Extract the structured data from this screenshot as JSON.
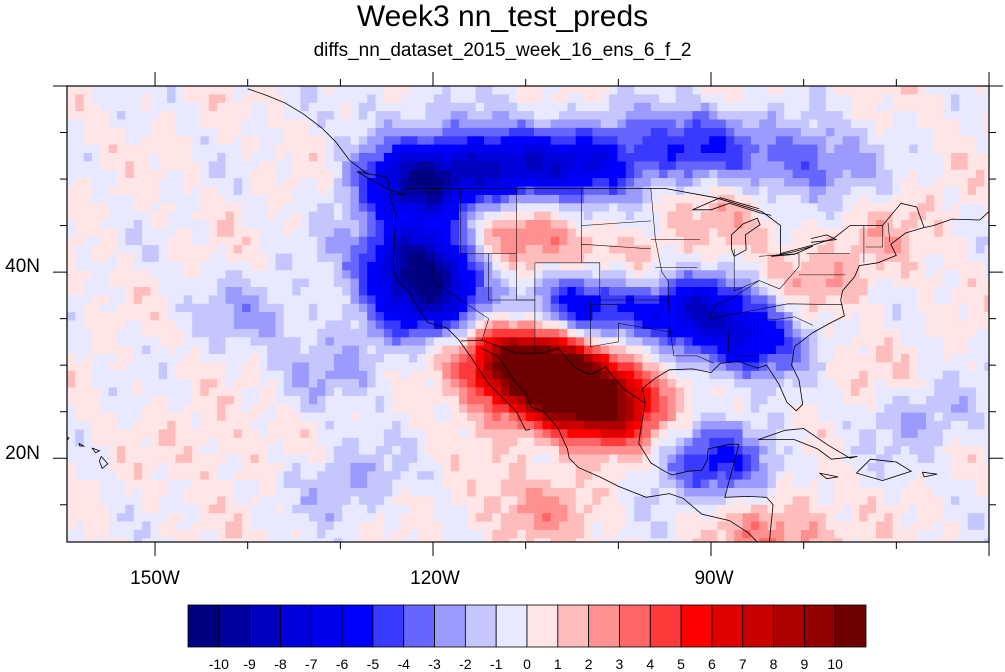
{
  "title": "Week3 nn_test_preds",
  "subtitle": "diffs_nn_dataset_2015_week_16_ens_6_f_2",
  "lon_labels": [
    "150W",
    "120W",
    "90W"
  ],
  "lat_labels": [
    "40N",
    "20N"
  ],
  "colorbar": {
    "labels": [
      "-10",
      "-9",
      "-8",
      "-7",
      "-6",
      "-5",
      "-4",
      "-3",
      "-2",
      "-1",
      "0",
      "1",
      "2",
      "3",
      "4",
      "5",
      "6",
      "7",
      "8",
      "9",
      "10"
    ],
    "colors": [
      "#000080",
      "#00009e",
      "#0000bf",
      "#0000dc",
      "#0000f0",
      "#0000ff",
      "#3a3aff",
      "#6666ff",
      "#9a9aff",
      "#c6c6ff",
      "#e8e8ff",
      "#ffe5e5",
      "#ffbcbc",
      "#ff9090",
      "#ff6666",
      "#ff3a3a",
      "#ff0000",
      "#e00000",
      "#c80000",
      "#ad0000",
      "#920000",
      "#6e0000"
    ]
  },
  "map": {
    "projection": "cylindrical-equidistant",
    "lon_range": [
      -159.5,
      -60
    ],
    "lat_range": [
      11,
      60
    ],
    "field_name": "difference",
    "anomalies": [
      {
        "lon": -122,
        "lat": 50,
        "value": -9
      },
      {
        "lon": -113,
        "lat": 52,
        "value": -7
      },
      {
        "lon": -103,
        "lat": 52,
        "value": -6
      },
      {
        "lon": -92,
        "lat": 54,
        "value": -5
      },
      {
        "lon": -80,
        "lat": 52,
        "value": -4
      },
      {
        "lon": -122,
        "lat": 42,
        "value": -9
      },
      {
        "lon": -120,
        "lat": 37,
        "value": -7
      },
      {
        "lon": -103,
        "lat": 37,
        "value": -7
      },
      {
        "lon": -93,
        "lat": 37,
        "value": -7
      },
      {
        "lon": -86,
        "lat": 33,
        "value": -6
      },
      {
        "lon": -90,
        "lat": 20,
        "value": -5
      },
      {
        "lon": -112,
        "lat": 31,
        "value": 8
      },
      {
        "lon": -107,
        "lat": 29,
        "value": 10
      },
      {
        "lon": -102,
        "lat": 26,
        "value": 9
      },
      {
        "lon": -99,
        "lat": 40,
        "value": 4
      },
      {
        "lon": -113,
        "lat": 44,
        "value": 4
      },
      {
        "lon": -80,
        "lat": 40,
        "value": 2
      },
      {
        "lon": -90,
        "lat": 48,
        "value": 2
      },
      {
        "lon": -130,
        "lat": 30,
        "value": -2
      },
      {
        "lon": -140,
        "lat": 36,
        "value": -2
      },
      {
        "lon": -143,
        "lat": 22,
        "value": 1
      },
      {
        "lon": -130,
        "lat": 18,
        "value": -2
      },
      {
        "lon": -75,
        "lat": 30,
        "value": 1
      },
      {
        "lon": -68,
        "lat": 25,
        "value": -2
      },
      {
        "lon": -70,
        "lat": 45,
        "value": 1
      },
      {
        "lon": -125,
        "lat": 58,
        "value": -1
      },
      {
        "lon": -110,
        "lat": 15,
        "value": 2
      },
      {
        "lon": -83,
        "lat": 12,
        "value": 3
      }
    ]
  }
}
